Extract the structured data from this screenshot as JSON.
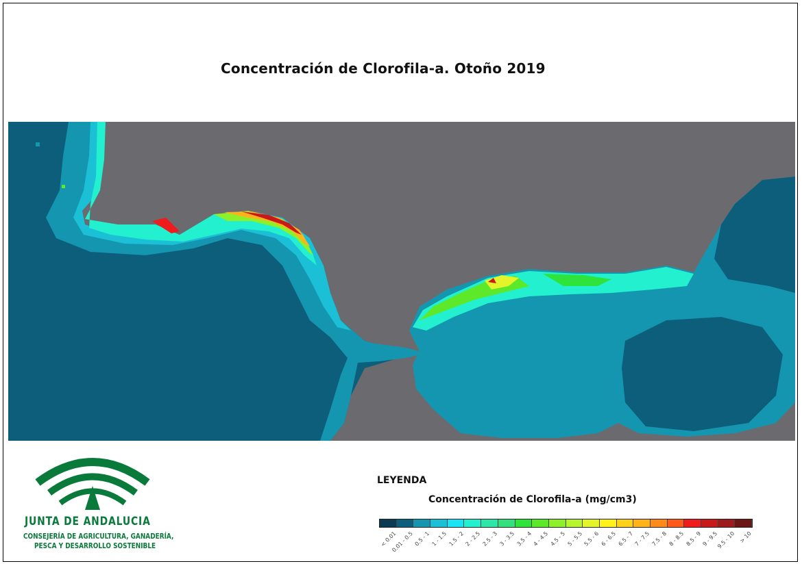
{
  "title": "Concentración de Clorofila-a. Otoño 2019",
  "legend": {
    "heading": "LEYENDA",
    "subtitle": "Concentración de Clorofila-a (mg/cm3)",
    "classes": [
      {
        "label": "< 0.01",
        "color": "#0c3a52"
      },
      {
        "label": "0.01 - 0.5",
        "color": "#0d5e7a"
      },
      {
        "label": "0.5 - 1",
        "color": "#1496b0"
      },
      {
        "label": "1 - 1.5",
        "color": "#1cc0d6"
      },
      {
        "label": "1.5 - 2",
        "color": "#19e3f5"
      },
      {
        "label": "2 - 2.5",
        "color": "#22f0cf"
      },
      {
        "label": "2.5 - 3",
        "color": "#2ee6a8"
      },
      {
        "label": "3 - 3.5",
        "color": "#33e07e"
      },
      {
        "label": "3.5 - 4",
        "color": "#2fe33d"
      },
      {
        "label": "4 - 4.5",
        "color": "#5ee82a"
      },
      {
        "label": "4.5 - 5",
        "color": "#8ef02a"
      },
      {
        "label": "5 - 5.5",
        "color": "#b9f52e"
      },
      {
        "label": "5.5 - 6",
        "color": "#e3f52a"
      },
      {
        "label": "6 - 6.5",
        "color": "#fff21a"
      },
      {
        "label": "6.5 - 7",
        "color": "#ffd21a"
      },
      {
        "label": "7 - 7.5",
        "color": "#ffb31a"
      },
      {
        "label": "7.5 - 8",
        "color": "#ff8a1a"
      },
      {
        "label": "8 - 8.5",
        "color": "#ff5a1a"
      },
      {
        "label": "8.5 - 9",
        "color": "#ee1c1c"
      },
      {
        "label": "9 - 9.5",
        "color": "#c81a1a"
      },
      {
        "label": "9.5 - 10",
        "color": "#9e1b1b"
      },
      {
        "label": "> 10",
        "color": "#6b1515"
      }
    ]
  },
  "logo": {
    "name": "JUNTA DE ANDALUCIA",
    "line1": "CONSEJERÍA DE AGRICULTURA, GANADERÍA,",
    "line2": "PESCA Y DESARROLLO SOSTENIBLE",
    "color": "#0a7a3b"
  },
  "map": {
    "land_color": "#6b6b6f",
    "ocean_deep_color": "#0d5e7a"
  }
}
